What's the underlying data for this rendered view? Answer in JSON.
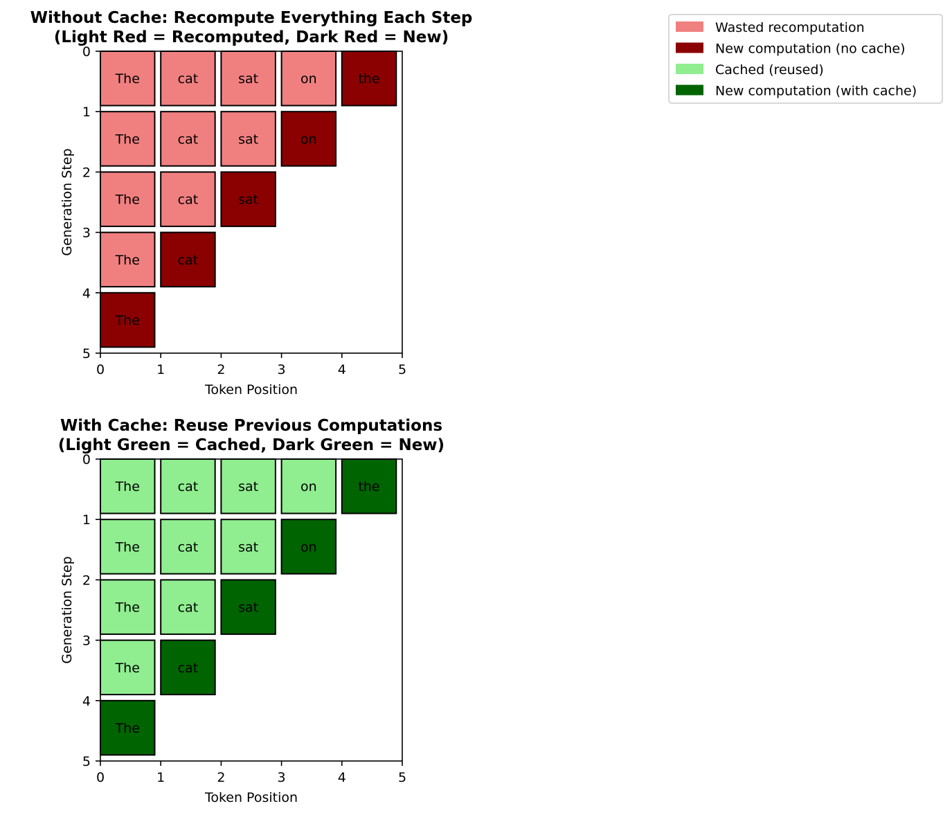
{
  "chart_data": [
    {
      "type": "heatmap",
      "title": "Without Cache: Recompute Everything Each Step",
      "subtitle": "(Light Red = Recomputed, Dark Red = New)",
      "xlabel": "Token Position",
      "ylabel": "Generation Step",
      "xlim": [
        0,
        5
      ],
      "ylim": [
        5,
        0
      ],
      "xticks": [
        "0",
        "1",
        "2",
        "3",
        "4",
        "5"
      ],
      "yticks": [
        "0",
        "1",
        "2",
        "3",
        "4",
        "5"
      ],
      "colors": {
        "old": "#f08080",
        "new": "#8b0000"
      },
      "cells": [
        {
          "step": 0,
          "pos": 0,
          "token": "The",
          "state": "old"
        },
        {
          "step": 0,
          "pos": 1,
          "token": "cat",
          "state": "old"
        },
        {
          "step": 0,
          "pos": 2,
          "token": "sat",
          "state": "old"
        },
        {
          "step": 0,
          "pos": 3,
          "token": "on",
          "state": "old"
        },
        {
          "step": 0,
          "pos": 4,
          "token": "the",
          "state": "new"
        },
        {
          "step": 1,
          "pos": 0,
          "token": "The",
          "state": "old"
        },
        {
          "step": 1,
          "pos": 1,
          "token": "cat",
          "state": "old"
        },
        {
          "step": 1,
          "pos": 2,
          "token": "sat",
          "state": "old"
        },
        {
          "step": 1,
          "pos": 3,
          "token": "on",
          "state": "new"
        },
        {
          "step": 2,
          "pos": 0,
          "token": "The",
          "state": "old"
        },
        {
          "step": 2,
          "pos": 1,
          "token": "cat",
          "state": "old"
        },
        {
          "step": 2,
          "pos": 2,
          "token": "sat",
          "state": "new"
        },
        {
          "step": 3,
          "pos": 0,
          "token": "The",
          "state": "old"
        },
        {
          "step": 3,
          "pos": 1,
          "token": "cat",
          "state": "new"
        },
        {
          "step": 4,
          "pos": 0,
          "token": "The",
          "state": "new"
        }
      ]
    },
    {
      "type": "heatmap",
      "title": "With Cache: Reuse Previous Computations",
      "subtitle": "(Light Green = Cached, Dark Green = New)",
      "xlabel": "Token Position",
      "ylabel": "Generation Step",
      "xlim": [
        0,
        5
      ],
      "ylim": [
        5,
        0
      ],
      "xticks": [
        "0",
        "1",
        "2",
        "3",
        "4",
        "5"
      ],
      "yticks": [
        "0",
        "1",
        "2",
        "3",
        "4",
        "5"
      ],
      "colors": {
        "old": "#90ee90",
        "new": "#006400"
      },
      "cells": [
        {
          "step": 0,
          "pos": 0,
          "token": "The",
          "state": "old"
        },
        {
          "step": 0,
          "pos": 1,
          "token": "cat",
          "state": "old"
        },
        {
          "step": 0,
          "pos": 2,
          "token": "sat",
          "state": "old"
        },
        {
          "step": 0,
          "pos": 3,
          "token": "on",
          "state": "old"
        },
        {
          "step": 0,
          "pos": 4,
          "token": "the",
          "state": "new"
        },
        {
          "step": 1,
          "pos": 0,
          "token": "The",
          "state": "old"
        },
        {
          "step": 1,
          "pos": 1,
          "token": "cat",
          "state": "old"
        },
        {
          "step": 1,
          "pos": 2,
          "token": "sat",
          "state": "old"
        },
        {
          "step": 1,
          "pos": 3,
          "token": "on",
          "state": "new"
        },
        {
          "step": 2,
          "pos": 0,
          "token": "The",
          "state": "old"
        },
        {
          "step": 2,
          "pos": 1,
          "token": "cat",
          "state": "old"
        },
        {
          "step": 2,
          "pos": 2,
          "token": "sat",
          "state": "new"
        },
        {
          "step": 3,
          "pos": 0,
          "token": "The",
          "state": "old"
        },
        {
          "step": 3,
          "pos": 1,
          "token": "cat",
          "state": "new"
        },
        {
          "step": 4,
          "pos": 0,
          "token": "The",
          "state": "new"
        }
      ]
    }
  ],
  "legend": {
    "placement": "top-right",
    "entries": [
      {
        "label": "Wasted recomputation",
        "color": "#f08080"
      },
      {
        "label": "New computation (no cache)",
        "color": "#8b0000"
      },
      {
        "label": "Cached (reused)",
        "color": "#90ee90"
      },
      {
        "label": "New computation (with cache)",
        "color": "#006400"
      }
    ]
  }
}
